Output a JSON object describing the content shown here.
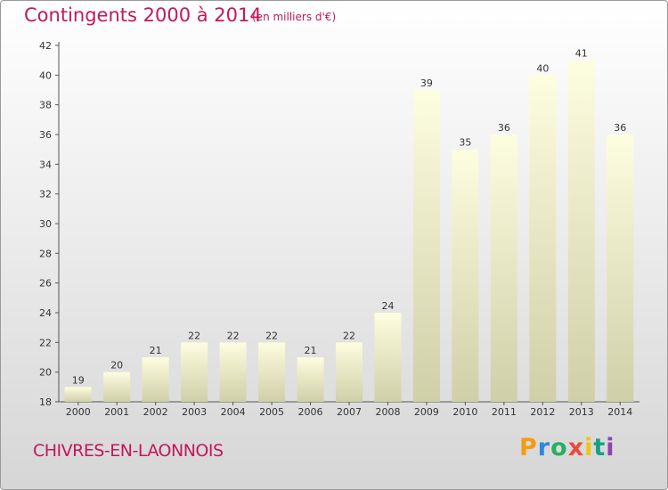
{
  "header": {
    "title": "Contingents 2000 à 2014",
    "unit": "(en milliers d'€)"
  },
  "footer": {
    "town": "CHIVRES-EN-LAONNOIS",
    "logo": [
      "P",
      "r",
      "o",
      "x",
      "i",
      "t",
      "i"
    ],
    "logo_colors": [
      "#f39c12",
      "#2e86de",
      "#27ae60",
      "#e74c3c",
      "#f1c40f",
      "#16a085",
      "#8e44ad"
    ]
  },
  "chart_data": {
    "type": "bar",
    "title": "Contingents 2000 à 2014",
    "subtitle": "(en milliers d'€)",
    "categories": [
      "2000",
      "2001",
      "2002",
      "2003",
      "2004",
      "2005",
      "2006",
      "2007",
      "2008",
      "2009",
      "2010",
      "2011",
      "2012",
      "2013",
      "2014"
    ],
    "values": [
      19,
      20,
      21,
      22,
      22,
      22,
      21,
      22,
      24,
      39,
      35,
      36,
      40,
      41,
      36
    ],
    "ylim": [
      18,
      42
    ],
    "yticks": [
      18,
      20,
      22,
      24,
      26,
      28,
      30,
      32,
      34,
      36,
      38,
      40,
      42
    ],
    "grid": false,
    "legend": "none",
    "bar_color_top": "#fdfde0",
    "bar_color_bottom": "#cfcfa8"
  }
}
